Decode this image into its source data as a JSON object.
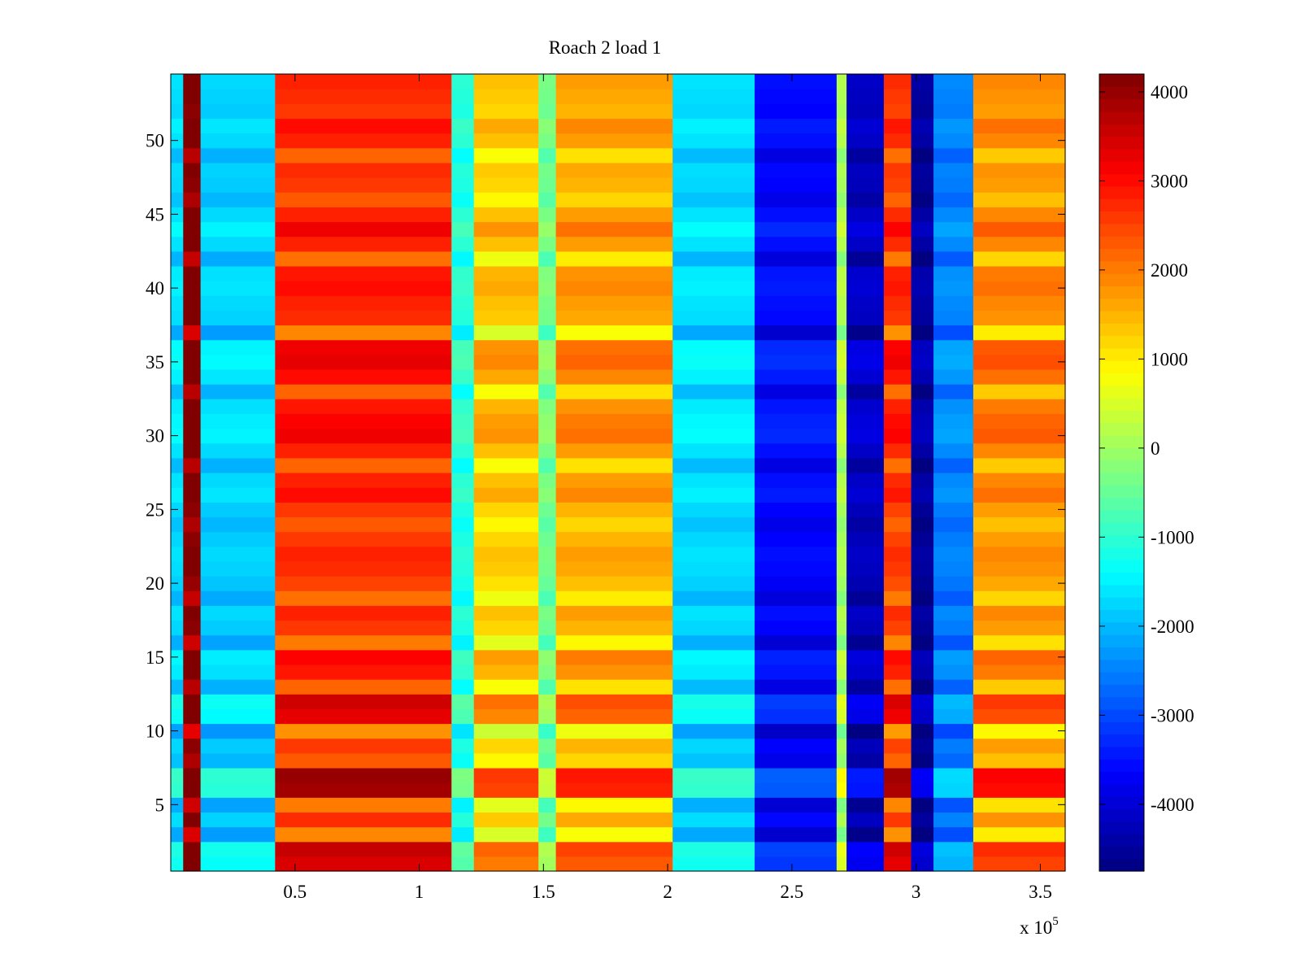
{
  "chart_data": {
    "type": "heatmap",
    "title": "Roach 2 load 1",
    "xlabel": "",
    "ylabel": "",
    "x_exponent_label": "x 10",
    "x_exponent_power": "5",
    "xlim": [
      0,
      3.6
    ],
    "ylim": [
      0.5,
      54.5
    ],
    "x_ticks": [
      0.5,
      1,
      1.5,
      2,
      2.5,
      3,
      3.5
    ],
    "x_tick_labels": [
      "0.5",
      "1",
      "1.5",
      "2",
      "2.5",
      "3",
      "3.5"
    ],
    "y_ticks": [
      5,
      10,
      15,
      20,
      25,
      30,
      35,
      40,
      45,
      50
    ],
    "y_tick_labels": [
      "5",
      "10",
      "15",
      "20",
      "25",
      "30",
      "35",
      "40",
      "45",
      "50"
    ],
    "clim": [
      -4750,
      4200
    ],
    "colorbar_ticks": [
      4000,
      3000,
      2000,
      1000,
      0,
      -1000,
      -2000,
      -3000,
      -4000
    ],
    "colorbar_tick_labels": [
      "4000",
      "3000",
      "2000",
      "1000",
      "0",
      "-1000",
      "-2000",
      "-3000",
      "-4000"
    ],
    "colormap": "jet",
    "grid": false,
    "x_bands": [
      {
        "x": [
          0.0,
          0.05
        ],
        "value": -1800
      },
      {
        "x": [
          0.05,
          0.12
        ],
        "value": 4000
      },
      {
        "x": [
          0.12,
          0.42
        ],
        "value": -1900
      },
      {
        "x": [
          0.42,
          1.13
        ],
        "value": 2500
      },
      {
        "x": [
          1.13,
          1.22
        ],
        "value": -1200
      },
      {
        "x": [
          1.22,
          1.48
        ],
        "value": 1100
      },
      {
        "x": [
          1.48,
          1.55
        ],
        "value": -500
      },
      {
        "x": [
          1.55,
          2.02
        ],
        "value": 1400
      },
      {
        "x": [
          2.02,
          2.35
        ],
        "value": -1800
      },
      {
        "x": [
          2.35,
          2.68
        ],
        "value": -3700
      },
      {
        "x": [
          2.68,
          2.72
        ],
        "value": 0
      },
      {
        "x": [
          2.72,
          2.87
        ],
        "value": -4300
      },
      {
        "x": [
          2.87,
          2.98
        ],
        "value": 2400
      },
      {
        "x": [
          2.98,
          3.07
        ],
        "value": -4600
      },
      {
        "x": [
          3.07,
          3.23
        ],
        "value": -2600
      },
      {
        "x": [
          3.23,
          3.6
        ],
        "value": 1600
      }
    ],
    "row_offsets": [
      {
        "y": 1,
        "offset": 900
      },
      {
        "y": 2,
        "offset": 1100
      },
      {
        "y": 3,
        "offset": -600
      },
      {
        "y": 4,
        "offset": 200
      },
      {
        "y": 5,
        "offset": -500
      },
      {
        "y": 6,
        "offset": 1400
      },
      {
        "y": 7,
        "offset": 1500
      },
      {
        "y": 8,
        "offset": -200
      },
      {
        "y": 9,
        "offset": 100
      },
      {
        "y": 10,
        "offset": -700
      },
      {
        "y": 11,
        "offset": 800
      },
      {
        "y": 12,
        "offset": 1000
      },
      {
        "y": 13,
        "offset": -300
      },
      {
        "y": 14,
        "offset": 400
      },
      {
        "y": 15,
        "offset": 600
      },
      {
        "y": 16,
        "offset": -500
      },
      {
        "y": 17,
        "offset": 100
      },
      {
        "y": 18,
        "offset": 300
      },
      {
        "y": 19,
        "offset": -400
      },
      {
        "y": 20,
        "offset": 0
      },
      {
        "y": 21,
        "offset": 200
      },
      {
        "y": 22,
        "offset": 300
      },
      {
        "y": 23,
        "offset": 100
      },
      {
        "y": 24,
        "offset": -200
      },
      {
        "y": 25,
        "offset": 100
      },
      {
        "y": 26,
        "offset": 500
      },
      {
        "y": 27,
        "offset": 300
      },
      {
        "y": 28,
        "offset": -300
      },
      {
        "y": 29,
        "offset": 300
      },
      {
        "y": 30,
        "offset": 700
      },
      {
        "y": 31,
        "offset": 600
      },
      {
        "y": 32,
        "offset": 400
      },
      {
        "y": 33,
        "offset": -300
      },
      {
        "y": 34,
        "offset": 500
      },
      {
        "y": 35,
        "offset": 800
      },
      {
        "y": 36,
        "offset": 700
      },
      {
        "y": 37,
        "offset": -600
      },
      {
        "y": 38,
        "offset": 200
      },
      {
        "y": 39,
        "offset": 300
      },
      {
        "y": 40,
        "offset": 500
      },
      {
        "y": 41,
        "offset": 400
      },
      {
        "y": 42,
        "offset": -400
      },
      {
        "y": 43,
        "offset": 300
      },
      {
        "y": 44,
        "offset": 700
      },
      {
        "y": 45,
        "offset": 300
      },
      {
        "y": 46,
        "offset": -200
      },
      {
        "y": 47,
        "offset": 100
      },
      {
        "y": 48,
        "offset": 200
      },
      {
        "y": 49,
        "offset": -300
      },
      {
        "y": 50,
        "offset": 300
      },
      {
        "y": 51,
        "offset": 500
      },
      {
        "y": 52,
        "offset": 100
      },
      {
        "y": 53,
        "offset": 200
      },
      {
        "y": 54,
        "offset": 300
      }
    ]
  }
}
